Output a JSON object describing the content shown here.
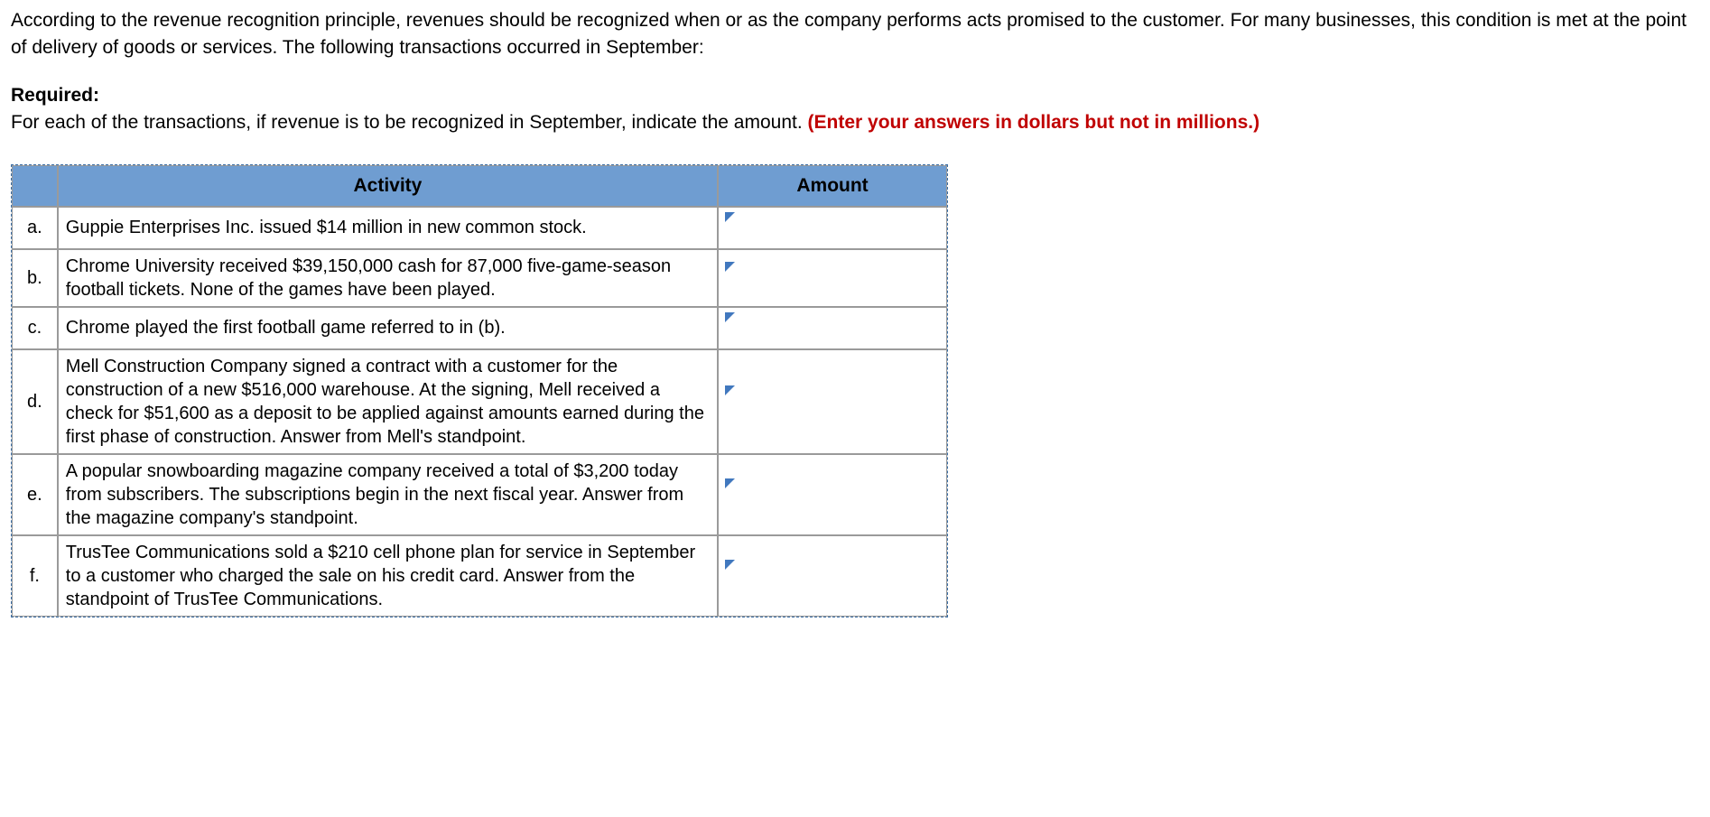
{
  "intro": "According to the revenue recognition principle, revenues should be recognized when or as the company performs acts promised to the customer. For many businesses, this condition is met at the point of delivery of goods or services. The following transactions occurred in September:",
  "required_label": "Required:",
  "instruction": "For each of the transactions, if revenue is to be recognized in September, indicate the amount. ",
  "instruction_note": "(Enter your answers in dollars but not in millions.)",
  "table": {
    "headers": {
      "activity": "Activity",
      "amount": "Amount"
    },
    "header_bg": "#6f9dd1",
    "border_color": "#9a9a9a",
    "dashed_color": "#3a6ea5",
    "triangle_color": "#4178be",
    "rows": [
      {
        "label": "a.",
        "activity": "Guppie Enterprises Inc. issued $14 million in new common stock.",
        "amount": ""
      },
      {
        "label": "b.",
        "activity": "Chrome University received $39,150,000 cash for 87,000 five-game-season football tickets. None of the games have been played.",
        "amount": ""
      },
      {
        "label": "c.",
        "activity": "Chrome played the first football game referred to in (b).",
        "amount": ""
      },
      {
        "label": "d.",
        "activity": "Mell Construction Company signed a contract with a customer for the construction of a new $516,000 warehouse. At the signing, Mell received a check for $51,600 as a deposit to be applied against amounts earned during the first phase of construction. Answer from Mell's standpoint.",
        "amount": ""
      },
      {
        "label": "e.",
        "activity": "A popular snowboarding magazine company received a total of $3,200 today from subscribers. The subscriptions begin in the next fiscal year. Answer from the magazine company's standpoint.",
        "amount": ""
      },
      {
        "label": "f.",
        "activity": "TrusTee Communications sold a $210 cell phone plan for service in September to a customer who charged the sale on his credit card. Answer from the standpoint of TrusTee Communications.",
        "amount": ""
      }
    ]
  }
}
